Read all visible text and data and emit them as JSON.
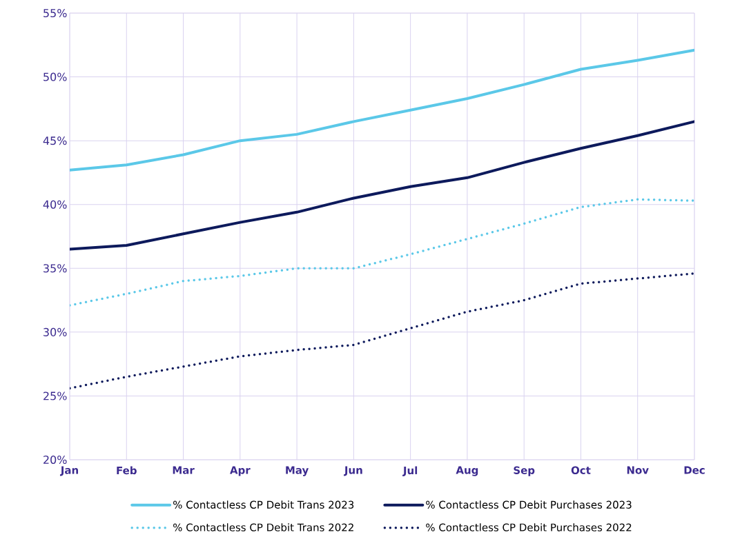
{
  "chart_data": {
    "type": "line",
    "categories": [
      "Jan",
      "Feb",
      "Mar",
      "Apr",
      "May",
      "Jun",
      "Jul",
      "Aug",
      "Sep",
      "Oct",
      "Nov",
      "Dec"
    ],
    "series": [
      {
        "name": "% Contactless CP Debit Trans 2023",
        "color": "#5bc8e8",
        "line_style": "solid",
        "values": [
          42.7,
          43.1,
          43.9,
          45.0,
          45.5,
          46.5,
          47.4,
          48.3,
          49.4,
          50.6,
          51.3,
          52.1
        ]
      },
      {
        "name": "% Contactless CP Debit Purchases 2023",
        "color": "#0d1a5c",
        "line_style": "solid",
        "values": [
          36.5,
          36.8,
          37.7,
          38.6,
          39.4,
          40.5,
          41.4,
          42.1,
          43.3,
          44.4,
          45.4,
          46.5
        ]
      },
      {
        "name": "% Contactless CP Debit Trans 2022",
        "color": "#5bc8e8",
        "line_style": "dotted",
        "values": [
          32.1,
          33.0,
          34.0,
          34.4,
          35.0,
          35.0,
          36.1,
          37.3,
          38.5,
          39.8,
          40.4,
          40.3
        ]
      },
      {
        "name": "% Contactless CP Debit Purchases 2022",
        "color": "#0d1a5c",
        "line_style": "dotted",
        "values": [
          25.6,
          26.5,
          27.3,
          28.1,
          28.6,
          29.0,
          30.3,
          31.6,
          32.5,
          33.8,
          34.2,
          34.6
        ]
      }
    ],
    "ylim": [
      20,
      55
    ],
    "yticks": [
      {
        "value": 20,
        "label": "20%"
      },
      {
        "value": 25,
        "label": "25%"
      },
      {
        "value": 30,
        "label": "30%"
      },
      {
        "value": 35,
        "label": "35%"
      },
      {
        "value": 40,
        "label": "40%"
      },
      {
        "value": 45,
        "label": "45%"
      },
      {
        "value": 50,
        "label": "50%"
      },
      {
        "value": 55,
        "label": "55%"
      }
    ],
    "grid": true,
    "legend": "bottom"
  }
}
